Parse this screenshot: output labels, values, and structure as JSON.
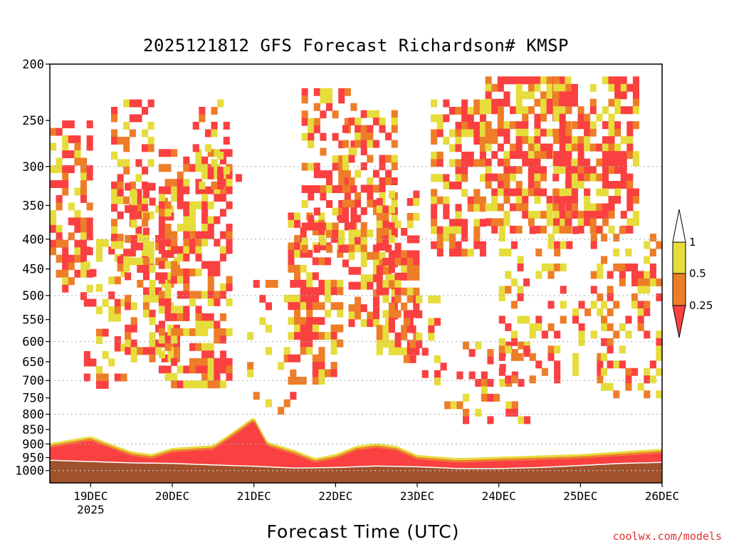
{
  "title": "2025121812 GFS Forecast Richardson# KMSP",
  "x_axis_title": "Forecast Time (UTC)",
  "credit": "coolwx.com/models",
  "colors": {
    "ri_lt_025": "#fa4040",
    "ri_025_05": "#ee7d28",
    "ri_05_1": "#e6dc3c",
    "ground": "#a0522d",
    "grid": "#aaaaaa"
  },
  "chart_data": {
    "type": "heatmap",
    "title": "2025121812 GFS Forecast Richardson# KMSP",
    "xlabel": "Forecast Time (UTC)",
    "ylabel": "",
    "y_scale": "log-pressure (reversed)",
    "ylim": [
      1050,
      200
    ],
    "y_ticks": [
      "200",
      "250",
      "300",
      "350",
      "400",
      "450",
      "500",
      "550",
      "600",
      "650",
      "700",
      "750",
      "800",
      "850",
      "900",
      "950",
      "1000"
    ],
    "y_gridlines": [
      300,
      400,
      500,
      600,
      700,
      800,
      900,
      1000
    ],
    "x_ticks": [
      {
        "label": "19DEC",
        "sub": "2025"
      },
      {
        "label": "20DEC",
        "sub": ""
      },
      {
        "label": "21DEC",
        "sub": ""
      },
      {
        "label": "22DEC",
        "sub": ""
      },
      {
        "label": "23DEC",
        "sub": ""
      },
      {
        "label": "24DEC",
        "sub": ""
      },
      {
        "label": "25DEC",
        "sub": ""
      },
      {
        "label": "26DEC",
        "sub": ""
      }
    ],
    "xlim_hours_from_19dec00z": [
      -12,
      168
    ],
    "colorbar": {
      "labels": [
        "1",
        "0.5",
        "0.25"
      ],
      "bins": [
        {
          "range": "0.5-1",
          "color": "#e6dc3c"
        },
        {
          "range": "0.25-0.5",
          "color": "#ee7d28"
        },
        {
          "range": "<0.25",
          "color": "#fa4040"
        }
      ]
    },
    "surface_pressure_hpa": [
      {
        "t": -12,
        "p": 960
      },
      {
        "t": 0,
        "p": 965
      },
      {
        "t": 12,
        "p": 970
      },
      {
        "t": 24,
        "p": 972
      },
      {
        "t": 36,
        "p": 978
      },
      {
        "t": 48,
        "p": 983
      },
      {
        "t": 60,
        "p": 990
      },
      {
        "t": 72,
        "p": 988
      },
      {
        "t": 84,
        "p": 982
      },
      {
        "t": 96,
        "p": 985
      },
      {
        "t": 108,
        "p": 992
      },
      {
        "t": 120,
        "p": 992
      },
      {
        "t": 132,
        "p": 988
      },
      {
        "t": 144,
        "p": 980
      },
      {
        "t": 156,
        "p": 972
      },
      {
        "t": 168,
        "p": 968
      }
    ],
    "boundary_layer_top_hpa": [
      {
        "t": -12,
        "p": 905
      },
      {
        "t": 0,
        "p": 880
      },
      {
        "t": 12,
        "p": 935
      },
      {
        "t": 18,
        "p": 945
      },
      {
        "t": 24,
        "p": 922
      },
      {
        "t": 36,
        "p": 912
      },
      {
        "t": 48,
        "p": 815
      },
      {
        "t": 52,
        "p": 900
      },
      {
        "t": 60,
        "p": 930
      },
      {
        "t": 66,
        "p": 960
      },
      {
        "t": 72,
        "p": 945
      },
      {
        "t": 78,
        "p": 915
      },
      {
        "t": 84,
        "p": 905
      },
      {
        "t": 90,
        "p": 915
      },
      {
        "t": 96,
        "p": 948
      },
      {
        "t": 108,
        "p": 960
      },
      {
        "t": 120,
        "p": 955
      },
      {
        "t": 132,
        "p": 950
      },
      {
        "t": 144,
        "p": 945
      },
      {
        "t": 156,
        "p": 935
      },
      {
        "t": 168,
        "p": 925
      }
    ],
    "regions": [
      {
        "t0": -12,
        "t1": 0,
        "p0": 250,
        "p1": 500,
        "density": 0.55
      },
      {
        "t0": -2,
        "t1": 10,
        "p0": 400,
        "p1": 720,
        "density": 0.35
      },
      {
        "t0": 6,
        "t1": 18,
        "p0": 230,
        "p1": 450,
        "density": 0.5
      },
      {
        "t0": 10,
        "t1": 26,
        "p0": 320,
        "p1": 650,
        "density": 0.45
      },
      {
        "t0": 20,
        "t1": 40,
        "p0": 280,
        "p1": 720,
        "density": 0.6
      },
      {
        "t0": 30,
        "t1": 44,
        "p0": 230,
        "p1": 320,
        "density": 0.2
      },
      {
        "t0": 46,
        "t1": 60,
        "p0": 470,
        "p1": 800,
        "density": 0.15
      },
      {
        "t0": 58,
        "t1": 74,
        "p0": 360,
        "p1": 700,
        "density": 0.55
      },
      {
        "t0": 62,
        "t1": 78,
        "p0": 220,
        "p1": 420,
        "density": 0.45
      },
      {
        "t0": 74,
        "t1": 90,
        "p0": 240,
        "p1": 560,
        "density": 0.55
      },
      {
        "t0": 84,
        "t1": 96,
        "p0": 330,
        "p1": 620,
        "density": 0.55
      },
      {
        "t0": 92,
        "t1": 104,
        "p0": 500,
        "p1": 730,
        "density": 0.35
      },
      {
        "t0": 100,
        "t1": 116,
        "p0": 230,
        "p1": 420,
        "density": 0.55
      },
      {
        "t0": 104,
        "t1": 128,
        "p0": 600,
        "p1": 820,
        "density": 0.2
      },
      {
        "t0": 116,
        "t1": 140,
        "p0": 210,
        "p1": 390,
        "density": 0.65
      },
      {
        "t0": 120,
        "t1": 150,
        "p0": 380,
        "p1": 700,
        "density": 0.25
      },
      {
        "t0": 136,
        "t1": 160,
        "p0": 210,
        "p1": 380,
        "density": 0.6
      },
      {
        "t0": 150,
        "t1": 168,
        "p0": 380,
        "p1": 740,
        "density": 0.3
      }
    ]
  }
}
